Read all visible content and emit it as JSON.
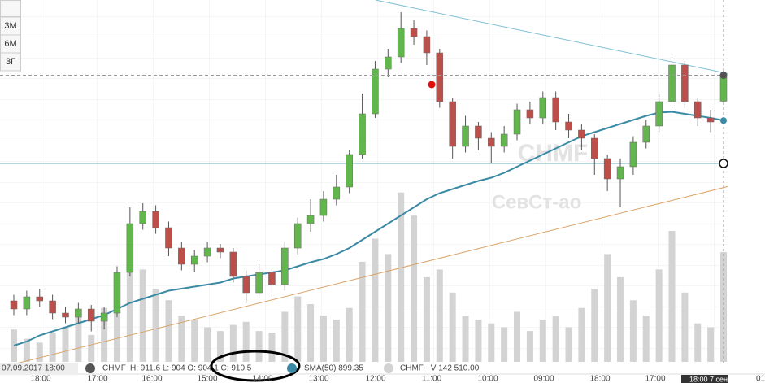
{
  "chart_data": {
    "type": "candlestick",
    "symbol": "CHMF",
    "watermark": "СевСт-ао",
    "period_buttons": [
      "3М",
      "6М",
      "3Г"
    ],
    "start_label": "07.09.2017 18:00",
    "legend_ohlc": "H: 911.6 L: 904 O: 904.1 C: 910.5",
    "legend_sma": "SMA(50) 899.35",
    "legend_volume": "CHMF - V 142 510.00",
    "time_labels": [
      "18:00",
      "17:00",
      "16:00",
      "15:00",
      "14:00",
      "13:00",
      "12:00",
      "11:00",
      "10:00",
      "09:00",
      "18:00",
      "17:00"
    ],
    "cursor_label": "18:00  7 сен",
    "edge_label": "01",
    "ylim": [
      840,
      929
    ],
    "vlim": [
      0,
      470000
    ],
    "up_color": "#62b74c",
    "down_color": "#bd4f4b",
    "volume_color": "#d3d3d3",
    "sma_color": "#3b8aa5",
    "open": [
      855,
      853,
      856,
      855,
      852,
      851,
      853,
      850,
      852,
      862,
      874,
      877,
      873,
      868,
      864,
      866,
      868,
      867,
      861,
      857,
      862,
      859,
      868,
      874,
      876,
      880,
      883,
      891,
      901,
      912,
      915,
      922,
      920,
      916,
      904,
      893,
      898,
      895,
      893,
      896,
      902,
      900,
      905,
      899,
      897,
      895,
      890,
      885,
      888,
      894,
      898,
      904,
      913,
      904,
      900,
      904.1
    ],
    "high": [
      856.5,
      857.5,
      858,
      856.5,
      853.5,
      854.5,
      854,
      853.5,
      863.5,
      878,
      879,
      878.5,
      874.5,
      869.5,
      867.5,
      869.5,
      869,
      868,
      862.5,
      864,
      863,
      869.5,
      875.5,
      880,
      882,
      886,
      892,
      906,
      914,
      917,
      926,
      924,
      921.5,
      917,
      905,
      900.5,
      899,
      896.5,
      898,
      903.5,
      904,
      906.5,
      906.5,
      901,
      898.5,
      896,
      891,
      890,
      895.5,
      899.5,
      906,
      915,
      914,
      905,
      902,
      911.6
    ],
    "low": [
      851.5,
      851.5,
      853.5,
      850.5,
      849.5,
      849.5,
      847.5,
      848,
      851,
      861,
      872.5,
      871.5,
      866,
      862.5,
      862,
      864.5,
      865.5,
      859.5,
      854.5,
      855.5,
      856,
      857.5,
      866.5,
      872,
      874.5,
      878.5,
      881.5,
      890,
      900,
      910,
      913.5,
      918,
      913,
      902.5,
      890,
      891.5,
      892,
      889,
      891.5,
      894.5,
      898.5,
      898.5,
      897,
      895,
      892,
      886,
      882,
      878,
      886,
      892.5,
      896.5,
      902,
      902.5,
      898,
      896.5,
      904
    ],
    "close": [
      853,
      856,
      855,
      852,
      851,
      853,
      850,
      852,
      862,
      874,
      877,
      873,
      868,
      864,
      866,
      868,
      867,
      861,
      857,
      862,
      859,
      868,
      874,
      876,
      880,
      883,
      891,
      901,
      912,
      915,
      922,
      920,
      916,
      904,
      893,
      898,
      895,
      893,
      896,
      902,
      900,
      905,
      899,
      897,
      895,
      890,
      885,
      888,
      894,
      898,
      904,
      913,
      904,
      900,
      899,
      910.5
    ],
    "volume": [
      42000,
      30000,
      25000,
      38000,
      45000,
      60000,
      35000,
      70000,
      110000,
      150000,
      120000,
      95000,
      80000,
      60000,
      55000,
      45000,
      40000,
      48000,
      52000,
      40000,
      38000,
      65000,
      85000,
      75000,
      60000,
      55000,
      70000,
      130000,
      160000,
      140000,
      220000,
      190000,
      110000,
      120000,
      90000,
      60000,
      55000,
      50000,
      45000,
      65000,
      40000,
      55000,
      60000,
      45000,
      70000,
      95000,
      140000,
      110000,
      80000,
      60000,
      120000,
      170000,
      90000,
      50000,
      45000,
      142510
    ],
    "sma": [
      844,
      845,
      846.5,
      847.5,
      848.5,
      849.5,
      850.5,
      851.5,
      853,
      854.5,
      855.5,
      856.5,
      857.5,
      858,
      858.5,
      859,
      859.5,
      860.5,
      861,
      861.5,
      862,
      862.5,
      863.5,
      864.5,
      865.3,
      866.5,
      868,
      870,
      872,
      874,
      876,
      878,
      880,
      881.5,
      882.5,
      883.5,
      884.5,
      885.3,
      886.5,
      888,
      889.5,
      891,
      892.5,
      894,
      895.5,
      896.5,
      897.5,
      898.5,
      899.5,
      900.5,
      901.3,
      901.5,
      901,
      900.5,
      900,
      899.35
    ]
  }
}
